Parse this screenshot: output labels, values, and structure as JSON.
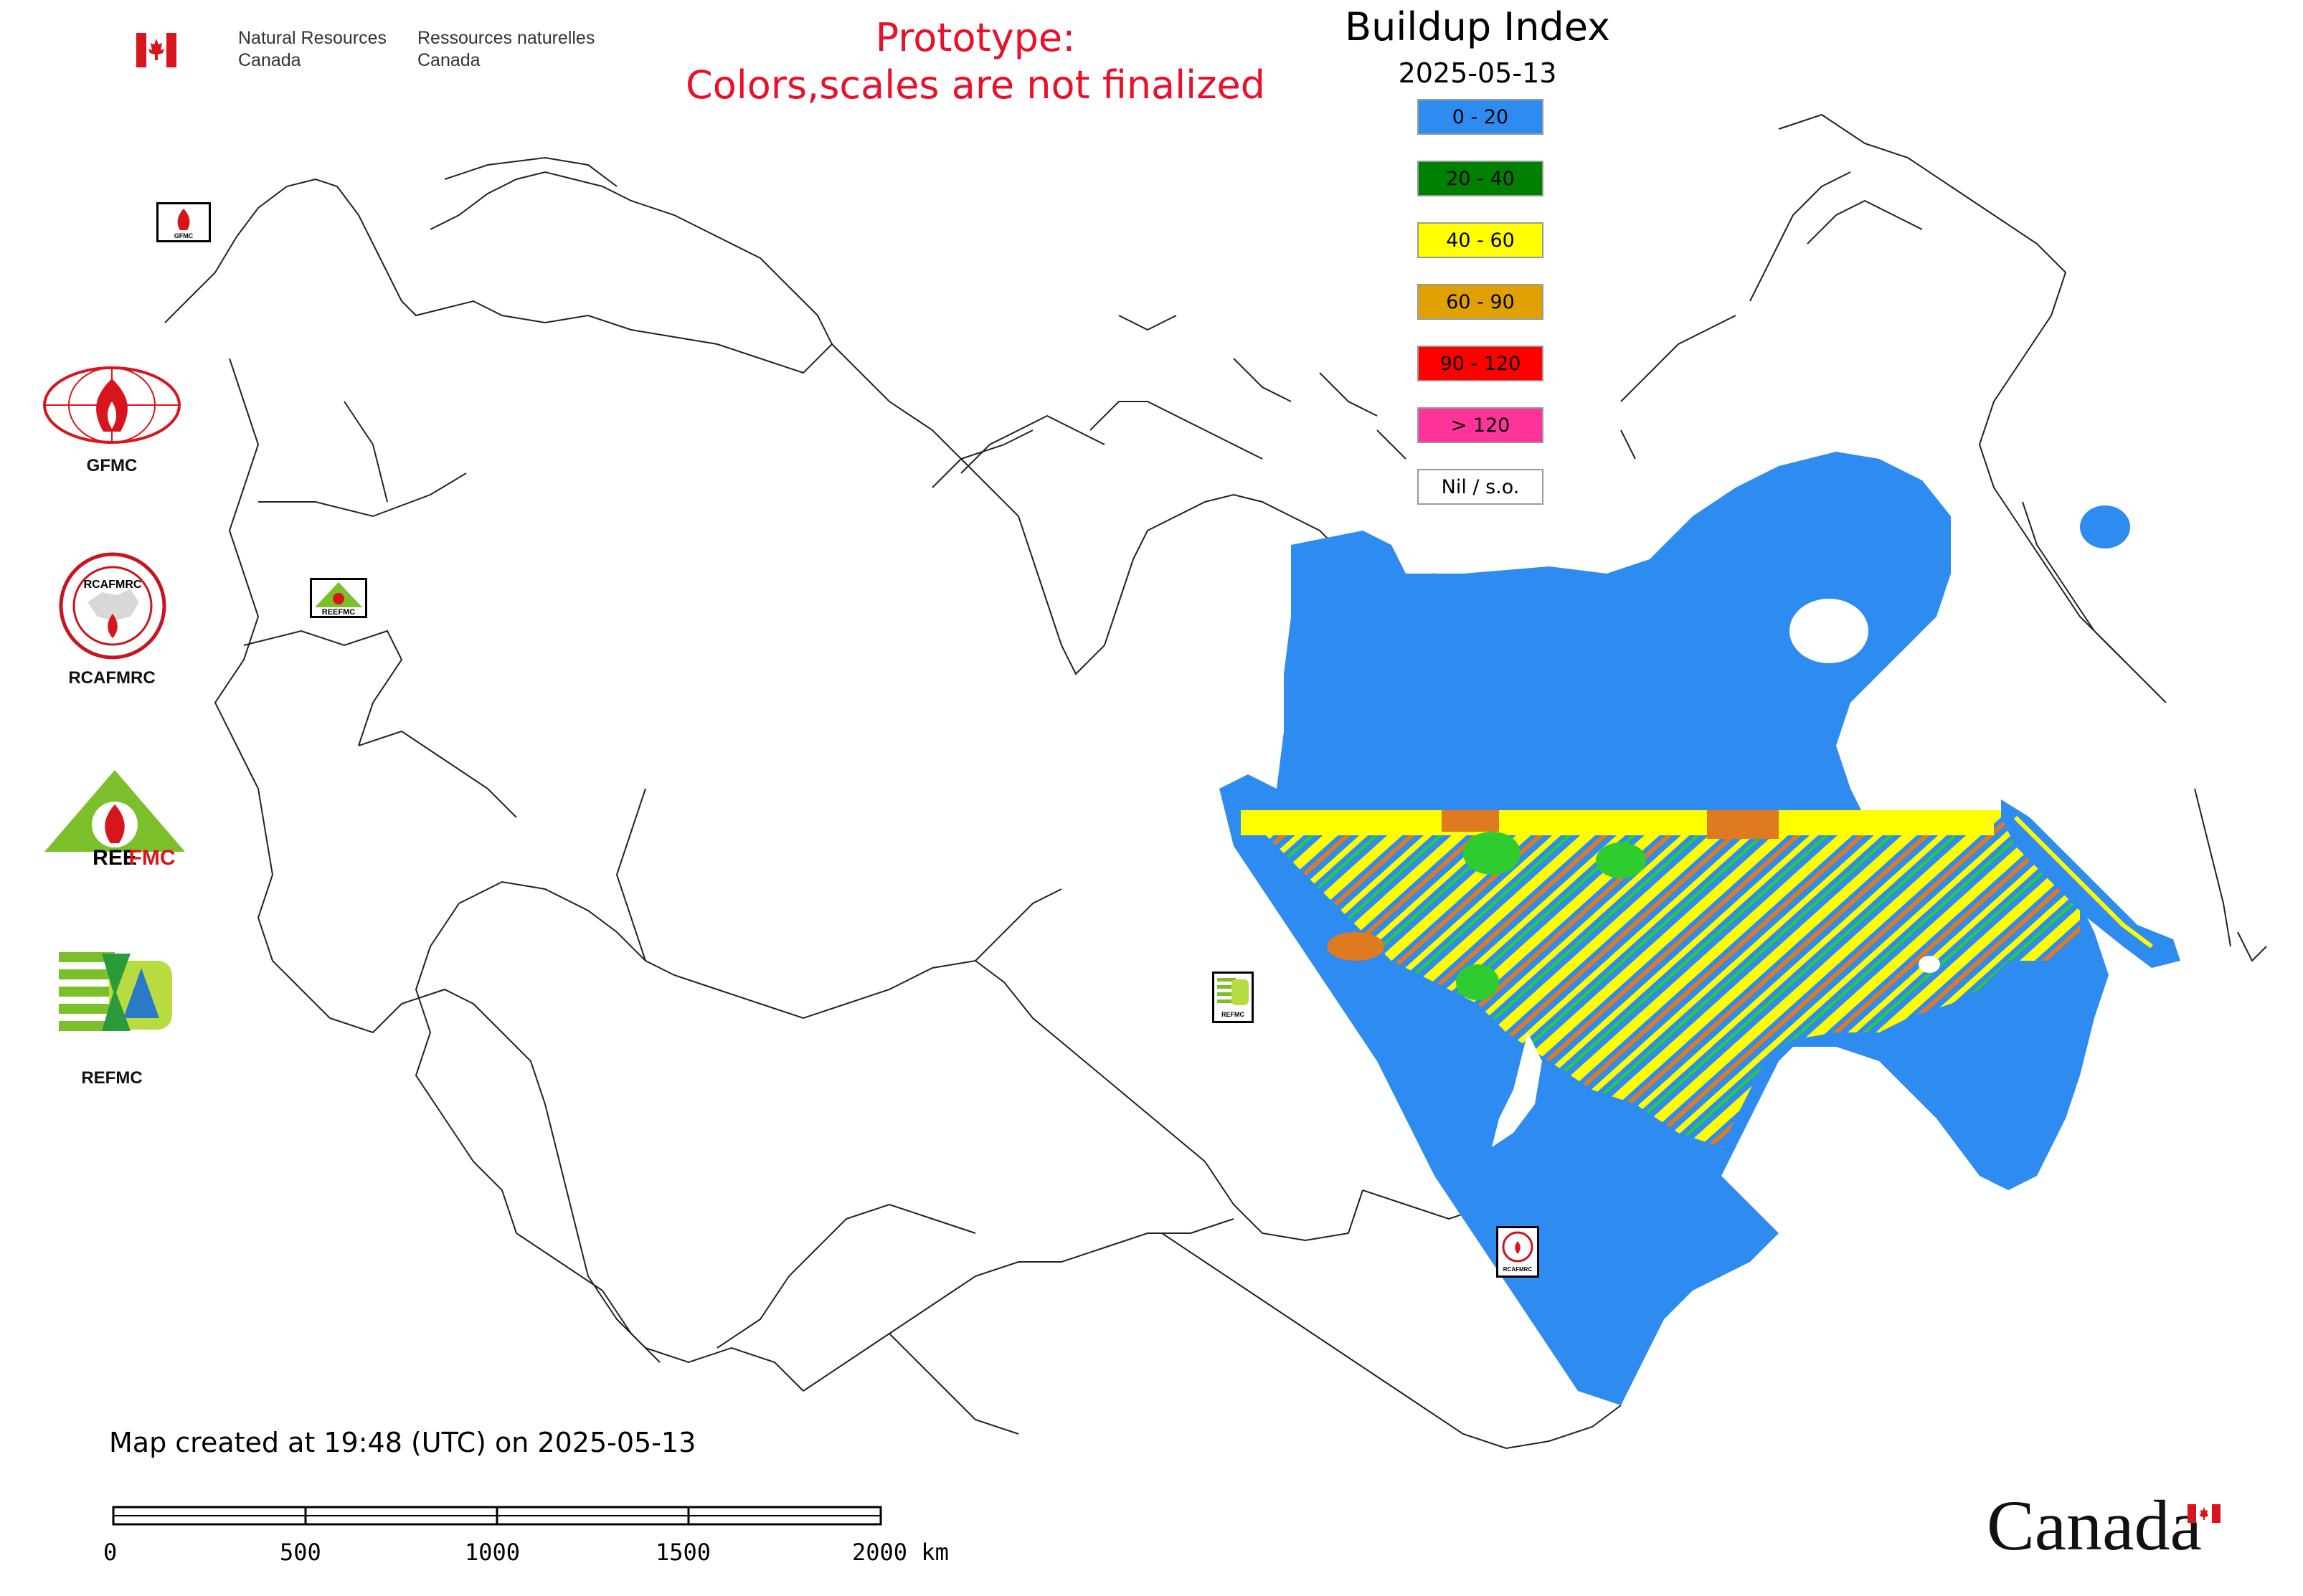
{
  "header": {
    "gov_en_line1": "Natural Resources",
    "gov_en_line2": "Canada",
    "gov_fr_line1": "Ressources naturelles",
    "gov_fr_line2": "Canada",
    "prototype_line1": "Prototype:",
    "prototype_line2": "Colors,scales are not finalized"
  },
  "map": {
    "title": "Buildup Index",
    "date": "2025-05-13"
  },
  "legend": [
    {
      "label": "0 - 20",
      "color": "#2e8cf0"
    },
    {
      "label": "20 - 40",
      "color": "#008000"
    },
    {
      "label": "40 - 60",
      "color": "#ffff00"
    },
    {
      "label": "60 - 90",
      "color": "#e0a000"
    },
    {
      "label": "90 - 120",
      "color": "#ff0000"
    },
    {
      "label": "> 120",
      "color": "#ff3399"
    },
    {
      "label": "Nil / s.o.",
      "color": "#ffffff"
    }
  ],
  "logos": [
    {
      "label": "GFMC"
    },
    {
      "label": "RCAFMRC"
    },
    {
      "label": "REEFMC"
    },
    {
      "label": "REFMC"
    }
  ],
  "mini_logos": {
    "gfmc": "GFMC",
    "reefmc": "REEFMC",
    "refmc": "REFMC",
    "rcafmrc": "RCAFMRC"
  },
  "footer": {
    "created": "Map created at 19:48 (UTC) on 2025-05-13",
    "wordmark": "Canada"
  },
  "scalebar": {
    "labels": [
      "0",
      "500",
      "1000",
      "1500",
      "2000 km"
    ]
  },
  "colors": {
    "prototype_red": "#e8102a",
    "fmc_green": "#7bbf2a",
    "gfmc_red": "#d8141c"
  }
}
